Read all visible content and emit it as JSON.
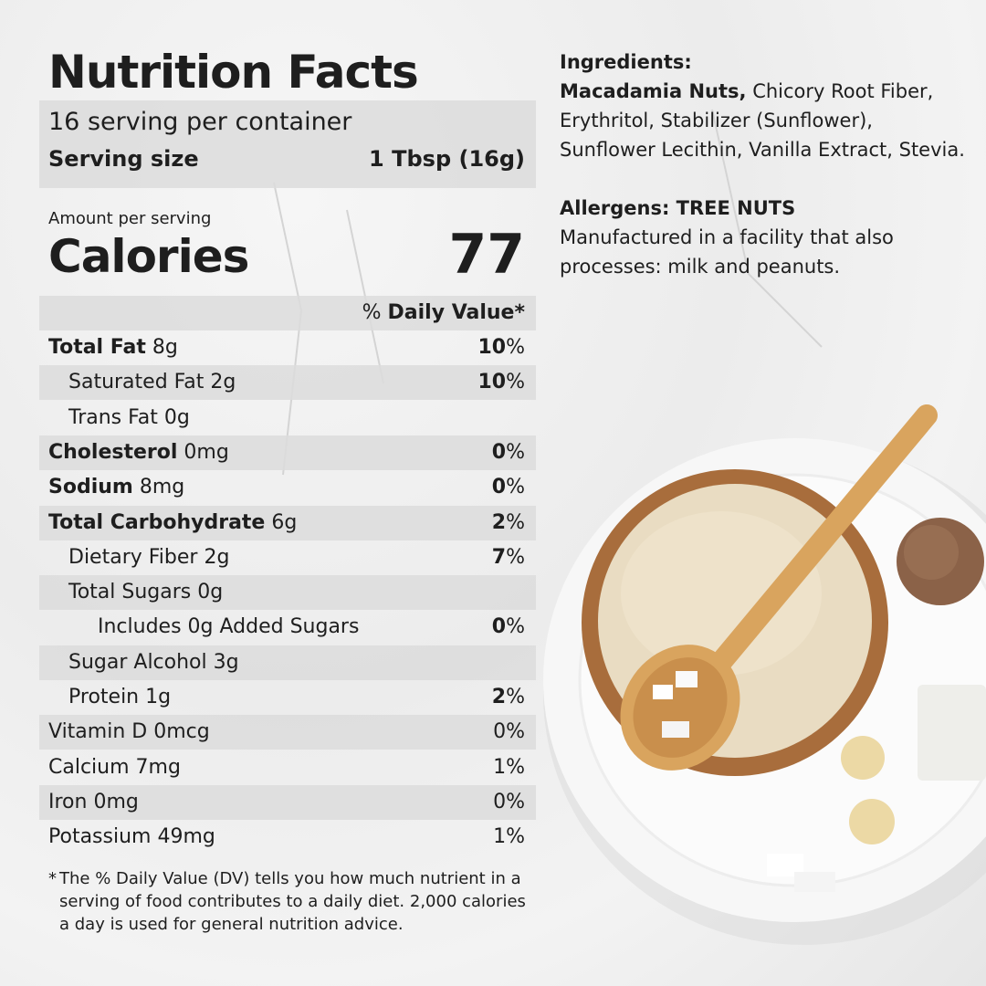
{
  "label": {
    "title": "Nutrition Facts",
    "servings": "16 serving per container",
    "serving_size_label": "Serving size",
    "serving_size": "1 Tbsp (16g)",
    "amount_per_serving": "Amount per serving",
    "calories_label": "Calories",
    "calories": "77",
    "dv_percent": "%",
    "dv_header": "Daily Value*",
    "nutrients": [
      {
        "name": "Total Fat",
        "amount": "8g",
        "dv": "10%",
        "level": 0
      },
      {
        "name": "Saturated Fat",
        "amount": "2g",
        "dv": "10%",
        "level": 1
      },
      {
        "name": "Trans Fat",
        "amount": "0g",
        "level": 1
      },
      {
        "name": "Cholesterol",
        "amount": "0mg",
        "dv": "0%",
        "level": 0
      },
      {
        "name": "Sodium",
        "amount": "8mg",
        "dv": "0%",
        "level": 0
      },
      {
        "name": "Total Carbohydrate",
        "amount": "6g",
        "dv": "2%",
        "level": 0
      },
      {
        "name": "Dietary Fiber",
        "amount": "2g",
        "dv": "7%",
        "level": 1
      },
      {
        "name": "Total Sugars",
        "amount": "0g",
        "level": 1
      },
      {
        "name": "Includes 0g Added Sugars",
        "dv": "0%",
        "level": 2
      },
      {
        "name": "Sugar Alcohol",
        "amount": "3g",
        "level": 1
      },
      {
        "name": "Protein",
        "amount": "1g",
        "dv": "2%",
        "level": 1
      }
    ],
    "vitamins_minerals": [
      {
        "name": "Vitamin D",
        "amount": "0mcg",
        "dv": "0%"
      },
      {
        "name": "Calcium",
        "amount": "7mg",
        "dv": "1%"
      },
      {
        "name": "Iron",
        "amount": "0mg",
        "dv": "0%"
      },
      {
        "name": "Potassium",
        "amount": "49mg",
        "dv": "1%"
      }
    ],
    "footnote_mark": "*",
    "footnote": "The % Daily Value (DV) tells you how much nutrient in a serving of food contributes to a daily diet. 2,000 calories a day is used for general nutrition advice."
  },
  "ingredients": {
    "heading": "Ingredients:",
    "highlight": "Macadamia Nuts,",
    "rest": "Chicory Root Fiber, Erythritol, Stabilizer (Sunflower), Sunflower Lecithin, Vanilla Extract, Stevia."
  },
  "allergens": {
    "heading": "Allergens: TREE NUTS",
    "note": "Manufactured in a facility that also processes: milk and peanuts."
  }
}
